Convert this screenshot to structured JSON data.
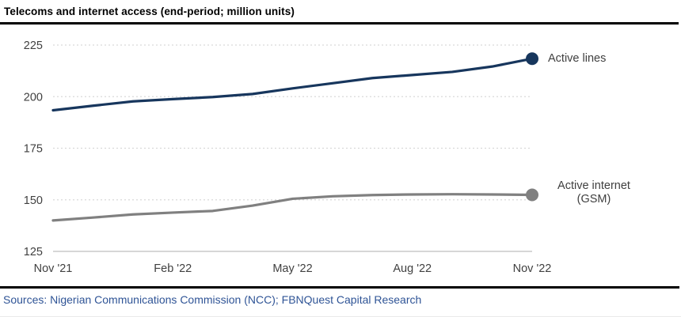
{
  "header": {
    "title": "Telecoms and internet access (end-period; million units)"
  },
  "footer": {
    "sources": "Sources: Nigerian Communications Commission (NCC); FBNQuest Capital Research"
  },
  "series_labels": {
    "active_lines": "Active lines",
    "active_internet_line1": "Active internet",
    "active_internet_line2": "(GSM)"
  },
  "colors": {
    "active_lines": "#17365d",
    "active_internet": "#808080",
    "gridline": "#d9d9d9",
    "baseline": "#bfbfbf",
    "tick_text": "#404040",
    "sources_text": "#2f5496",
    "rule": "#000000"
  },
  "chart_data": {
    "type": "line",
    "title": "Telecoms and internet access (end-period; million units)",
    "xlabel": "",
    "ylabel": "",
    "x": [
      "Nov '21",
      "Dec '21",
      "Jan '22",
      "Feb '22",
      "Mar '22",
      "Apr '22",
      "May '22",
      "Jun '22",
      "Jul '22",
      "Aug '22",
      "Sep '22",
      "Oct '22",
      "Nov '22"
    ],
    "xtick_labels": [
      "Nov '21",
      "Feb '22",
      "May '22",
      "Aug '22",
      "Nov '22"
    ],
    "xtick_indices": [
      0,
      3,
      6,
      9,
      12
    ],
    "ylim": [
      125,
      225
    ],
    "yticks": [
      125,
      150,
      175,
      200,
      225
    ],
    "grid": "horizontal dashed gridlines at 150/175/200/225, solid baseline at 125",
    "legend_position": "labels at right end of each line",
    "series": [
      {
        "name": "Active lines",
        "color": "#17365d",
        "end_marker": true,
        "values": [
          193.4,
          195.6,
          197.7,
          198.8,
          199.8,
          201.3,
          204.0,
          206.5,
          209.0,
          210.5,
          212.0,
          214.6,
          218.4
        ]
      },
      {
        "name": "Active internet (GSM)",
        "color": "#808080",
        "end_marker": true,
        "values": [
          140.0,
          141.4,
          142.9,
          143.8,
          144.6,
          147.2,
          150.5,
          151.7,
          152.3,
          152.6,
          152.7,
          152.6,
          152.4
        ]
      }
    ]
  }
}
